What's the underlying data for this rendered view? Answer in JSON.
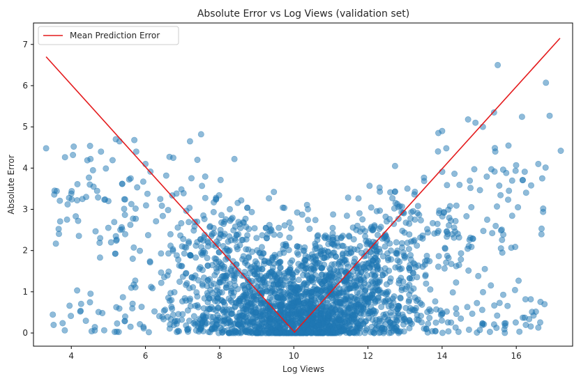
{
  "chart_data": {
    "type": "scatter",
    "title": "Absolute Error vs Log Views (validation set)",
    "xlabel": "Log Views",
    "ylabel": "Absolute Error",
    "xlim": [
      2.98,
      17.52
    ],
    "ylim": [
      -0.32,
      7.52
    ],
    "xticks": [
      4,
      6,
      8,
      10,
      12,
      14,
      16
    ],
    "yticks": [
      0,
      1,
      2,
      3,
      4,
      5,
      6,
      7
    ],
    "grid": false,
    "legend": {
      "position": "top-left",
      "entries": [
        "Mean Prediction Error"
      ]
    },
    "colors": {
      "points": "#1f77b4",
      "line": "#e41a1c"
    },
    "line": {
      "name": "Mean Prediction Error",
      "x": [
        3.32,
        10.02,
        17.18
      ],
      "y": [
        6.7,
        0.02,
        7.15
      ]
    },
    "scatter_outliers": {
      "x": [
        3.32,
        3.9,
        4.0,
        4.3,
        4.4,
        4.5,
        4.6,
        4.8,
        5.0,
        5.2,
        5.3,
        5.6,
        5.7,
        5.75,
        6.0,
        7.2,
        7.5,
        7.4,
        8.4,
        15.5,
        16.8,
        16.9,
        17.2,
        16.4,
        16.7,
        14.7,
        14.9,
        15.1,
        15.4,
        14.0,
        13.9
      ],
      "y": [
        4.48,
        3.12,
        3.38,
        3.25,
        3.3,
        3.6,
        3.55,
        4.4,
        3.2,
        4.7,
        4.65,
        3.75,
        4.68,
        4.4,
        4.1,
        4.65,
        4.82,
        4.2,
        4.22,
        6.5,
        6.07,
        5.27,
        4.42,
        3.58,
        3.75,
        5.18,
        5.1,
        5.0,
        5.35,
        4.9,
        4.85
      ]
    },
    "scatter_model": {
      "n": 2600,
      "description_free": true,
      "x_mean": 10.2,
      "x_sd": 1.75,
      "x_range": [
        3.5,
        16.8
      ]
    }
  }
}
